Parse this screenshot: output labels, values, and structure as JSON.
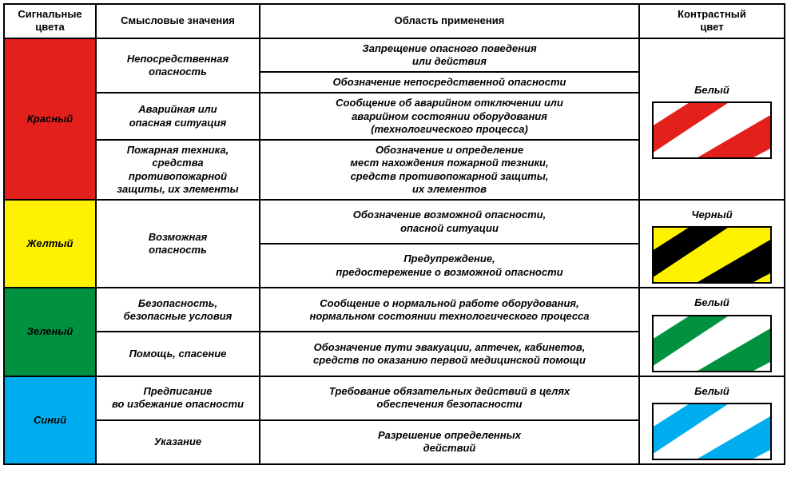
{
  "headers": {
    "signal": "Сигнальные\nцвета",
    "meaning": "Смысловые значения",
    "application": "Область применения",
    "contrast": "Контрастный\nцвет"
  },
  "colors": {
    "red": "#e4201c",
    "yellow": "#fff200",
    "green": "#00923f",
    "blue": "#00aeef",
    "black": "#000000",
    "white": "#ffffff"
  },
  "rows": {
    "red": {
      "name": "Красный",
      "contrast_label": "Белый",
      "meanings": {
        "m1": "Непосредственная\nопасность",
        "m2": "Аварийная или\nопасная ситуация",
        "m3": "Пожарная техника,\nсредства\nпротивопожарной\nзащиты, их элементы"
      },
      "apps": {
        "a1": "Запрещение опасного поведения\nили действия",
        "a2": "Обозначение непосредственной опасности",
        "a3": "Сообщение об аварийном отключении или\nаварийном состоянии  оборудования\n(технологического процесса)",
        "a4": "Обозначение и определение\nмест нахождения пожарной тезники,\nсредств противопожарной защиты,\nих элементов"
      }
    },
    "yellow": {
      "name": "Желтый",
      "contrast_label": "Черный",
      "meanings": {
        "m1": "Возможная\nопасность"
      },
      "apps": {
        "a1": "Обозначение возможной опасности,\nопасной ситуации",
        "a2": "Предупреждение,\nпредостережение о возможной опасности"
      }
    },
    "green": {
      "name": "Зеленый",
      "contrast_label": "Белый",
      "meanings": {
        "m1": "Безопасность,\nбезопасные условия",
        "m2": "Помощь, спасение"
      },
      "apps": {
        "a1": "Сообщение о нормальной работе оборудования,\nнормальном состоянии технологического процесса",
        "a2": "Обозначение пути эвакуации, аптечек, кабинетов,\nсредств по оказанию первой медицинской помощи"
      }
    },
    "blue": {
      "name": "Синий",
      "contrast_label": "Белый",
      "meanings": {
        "m1": "Предписание\nво избежание опасности",
        "m2": "Указание"
      },
      "apps": {
        "a1": "Требование обязательных действий в целях\nобеспечения безопасности",
        "a2": "Разрешение определенных\nдействий"
      }
    }
  }
}
